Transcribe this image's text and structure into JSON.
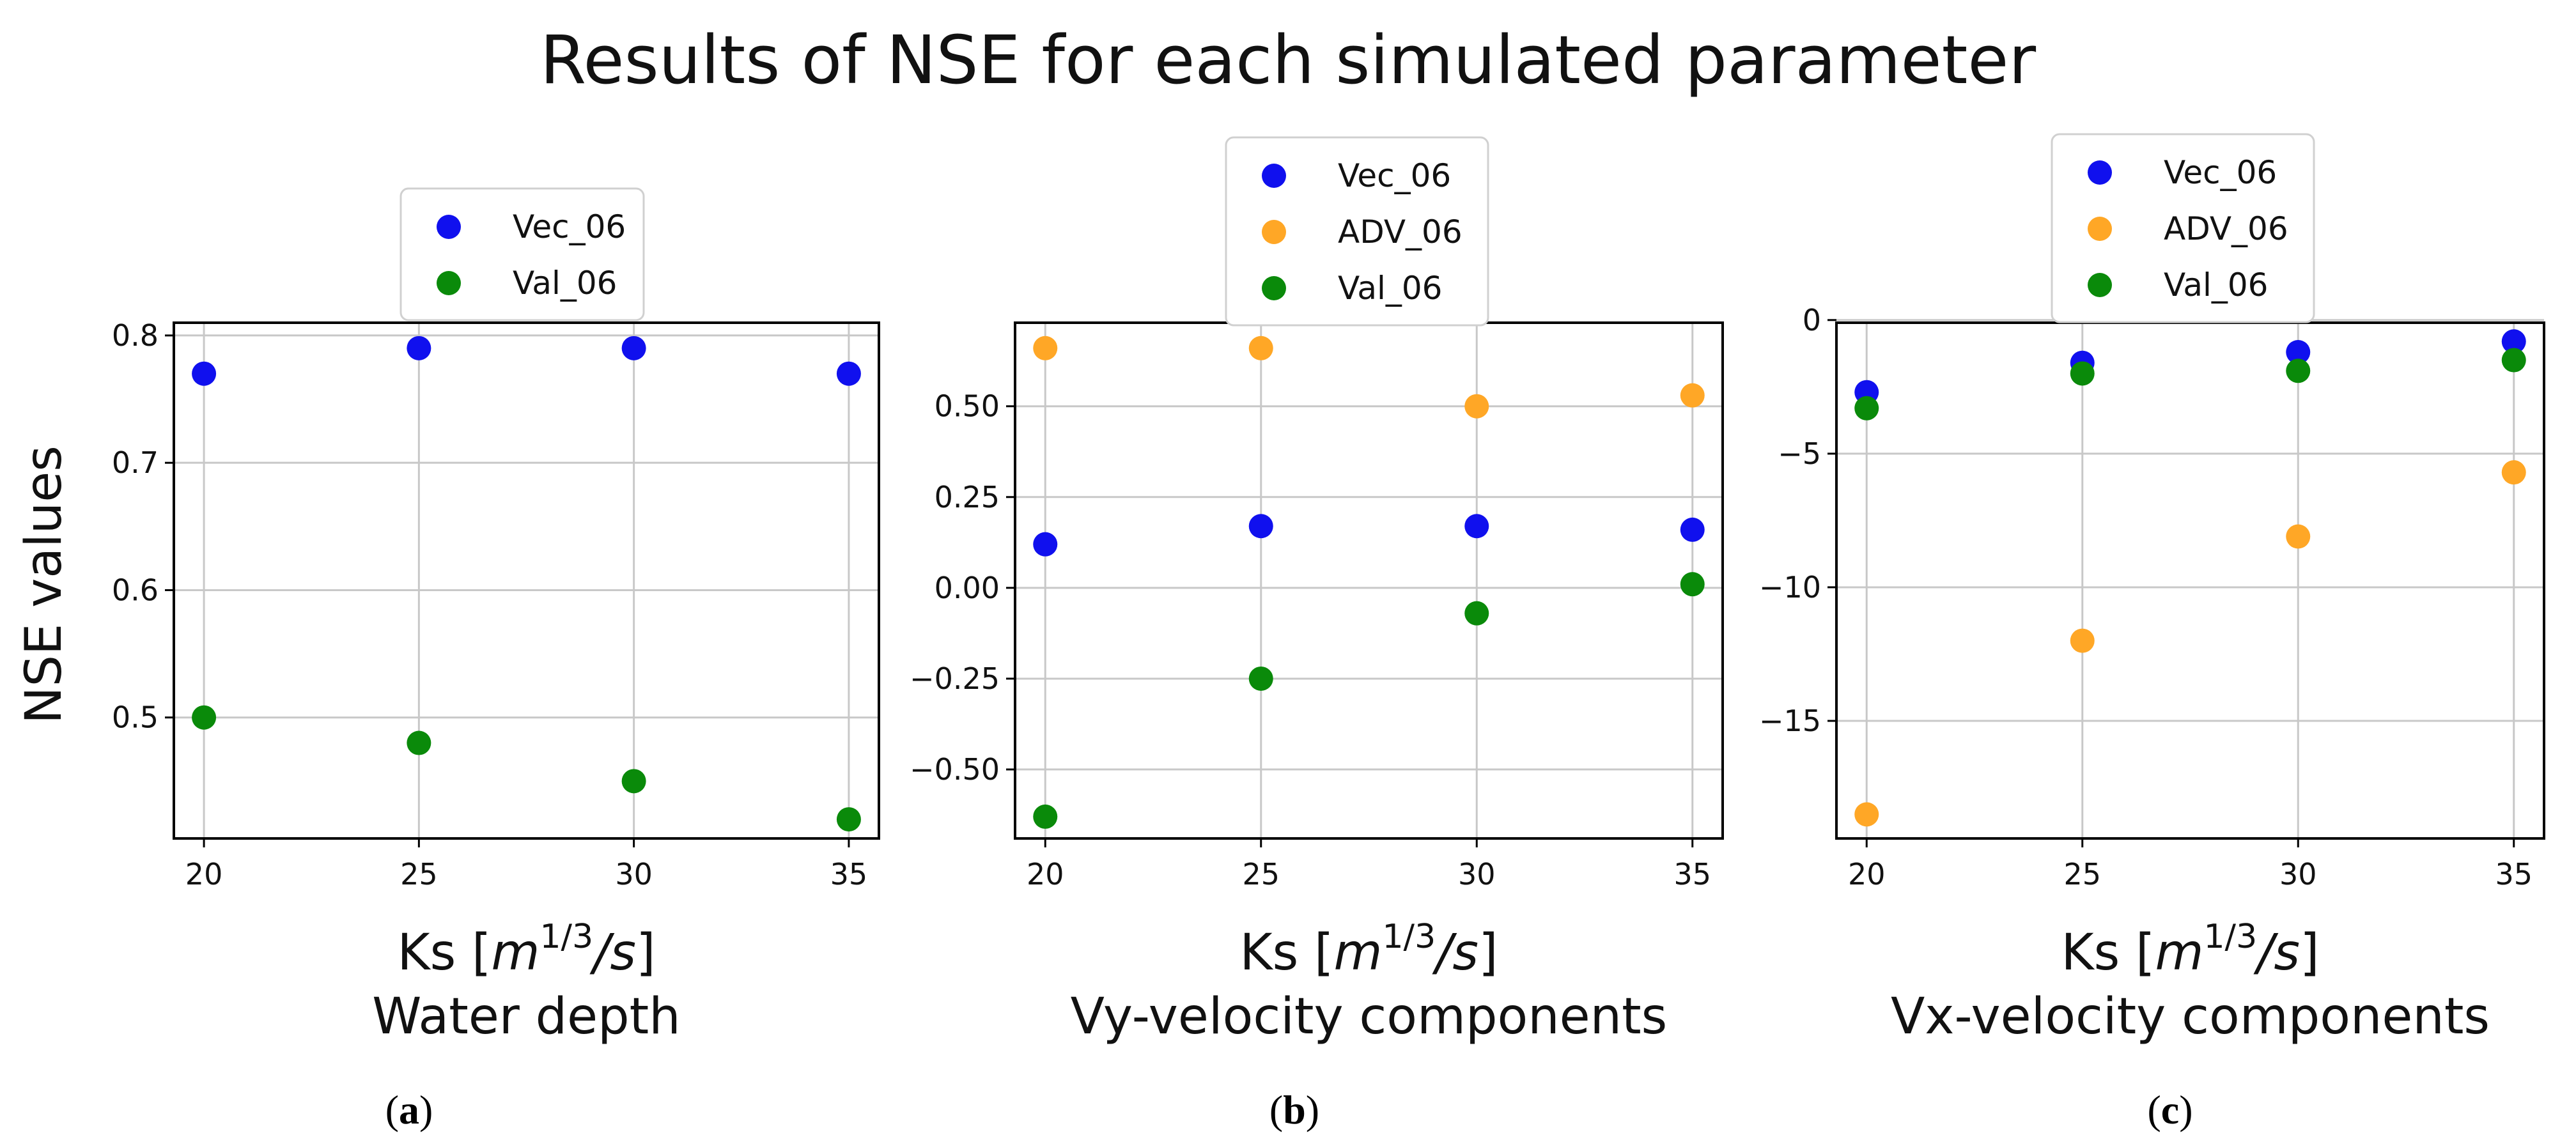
{
  "figure_title": "Results of NSE for each simulated parameter",
  "y_axis_label": "NSE values",
  "x_axis_label": {
    "prefix": "Ks [",
    "unit_base": "m",
    "unit_exp": "1/3",
    "unit_suffix": "/s",
    "close": "]"
  },
  "colors": {
    "Vec_06": "#1010ee",
    "ADV_06": "#ffa726",
    "Val_06": "#0a8a0a"
  },
  "chart_data": [
    {
      "type": "scatter",
      "panel_label": "a",
      "subtitle": "Water depth",
      "xlabel": "Ks [m^{1/3}/s]",
      "ylabel": "NSE values",
      "x": [
        20,
        25,
        30,
        35
      ],
      "xlim": [
        19.3,
        35.7
      ],
      "ylim": [
        0.405,
        0.81
      ],
      "xticks": [
        "20",
        "25",
        "30",
        "35"
      ],
      "yticks": [
        {
          "v": 0.5,
          "label": "0.5"
        },
        {
          "v": 0.6,
          "label": "0.6"
        },
        {
          "v": 0.7,
          "label": "0.7"
        },
        {
          "v": 0.8,
          "label": "0.8"
        }
      ],
      "grid": true,
      "legend_position": "above",
      "series": [
        {
          "name": "Vec_06",
          "values": [
            0.77,
            0.79,
            0.79,
            0.77
          ]
        },
        {
          "name": "Val_06",
          "values": [
            0.5,
            0.48,
            0.45,
            0.42
          ]
        }
      ]
    },
    {
      "type": "scatter",
      "panel_label": "b",
      "subtitle": "Vy-velocity components",
      "xlabel": "Ks [m^{1/3}/s]",
      "ylabel": "",
      "x": [
        20,
        25,
        30,
        35
      ],
      "xlim": [
        19.3,
        35.7
      ],
      "ylim": [
        -0.69,
        0.73
      ],
      "xticks": [
        "20",
        "25",
        "30",
        "35"
      ],
      "yticks": [
        {
          "v": -0.5,
          "label": "−0.50"
        },
        {
          "v": -0.25,
          "label": "−0.25"
        },
        {
          "v": 0,
          "label": "0.00"
        },
        {
          "v": 0.25,
          "label": "0.25"
        },
        {
          "v": 0.5,
          "label": "0.50"
        }
      ],
      "grid": true,
      "legend_position": "above",
      "series": [
        {
          "name": "Vec_06",
          "values": [
            0.12,
            0.17,
            0.17,
            0.16
          ]
        },
        {
          "name": "ADV_06",
          "values": [
            0.66,
            0.66,
            0.5,
            0.53
          ]
        },
        {
          "name": "Val_06",
          "values": [
            -0.63,
            -0.25,
            -0.07,
            0.01
          ]
        }
      ]
    },
    {
      "type": "scatter",
      "panel_label": "c",
      "subtitle": "Vx-velocity components",
      "xlabel": "Ks [m^{1/3}/s]",
      "ylabel": "",
      "x": [
        20,
        25,
        30,
        35
      ],
      "xlim": [
        19.3,
        35.7
      ],
      "ylim": [
        -19.4,
        -0.1
      ],
      "xticks": [
        "20",
        "25",
        "30",
        "35"
      ],
      "yticks": [
        {
          "v": -15,
          "label": "−15"
        },
        {
          "v": -10,
          "label": "−10"
        },
        {
          "v": -5,
          "label": "−5"
        },
        {
          "v": 0,
          "label": "0"
        }
      ],
      "grid": true,
      "legend_position": "above",
      "series": [
        {
          "name": "Vec_06",
          "values": [
            -2.7,
            -1.6,
            -1.2,
            -0.8
          ]
        },
        {
          "name": "ADV_06",
          "values": [
            -18.5,
            -12.0,
            -8.1,
            -5.7
          ]
        },
        {
          "name": "Val_06",
          "values": [
            -3.3,
            -2.0,
            -1.9,
            -1.5
          ]
        }
      ]
    }
  ]
}
